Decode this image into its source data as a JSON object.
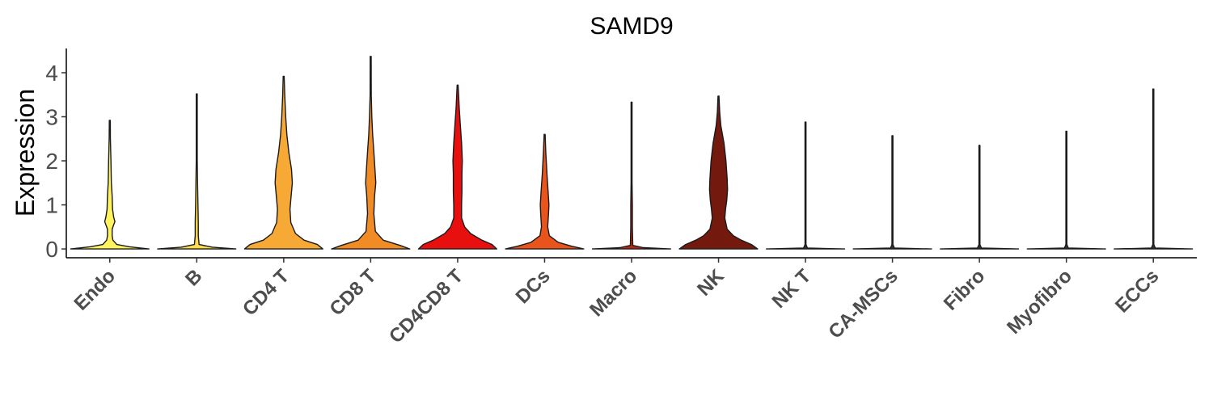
{
  "chart_data": {
    "type": "violin",
    "title": "SAMD9",
    "ylabel": "Expression",
    "xlabel": "",
    "ylim": [
      -0.2,
      4.55
    ],
    "yticks": [
      0,
      1,
      2,
      3,
      4
    ],
    "grid": false,
    "legend": "none",
    "categories": [
      "Endo",
      "B",
      "CD4 T",
      "CD8 T",
      "CD4CD8 T",
      "DCs",
      "Macro",
      "NK",
      "NK T",
      "CA-MSCs",
      "Fibro",
      "Myofibro",
      "ECCs"
    ],
    "series": [
      {
        "color": "#FFF45E",
        "max": 2.92,
        "density": [
          [
            0,
            1.0
          ],
          [
            0.05,
            0.5
          ],
          [
            0.1,
            0.18
          ],
          [
            0.2,
            0.08
          ],
          [
            0.3,
            0.06
          ],
          [
            0.45,
            0.06
          ],
          [
            0.55,
            0.1
          ],
          [
            0.62,
            0.13
          ],
          [
            0.72,
            0.1
          ],
          [
            0.9,
            0.07
          ],
          [
            1.2,
            0.06
          ],
          [
            1.5,
            0.04
          ],
          [
            2.0,
            0.03
          ],
          [
            2.5,
            0.015
          ],
          [
            2.92,
            0.005
          ]
        ]
      },
      {
        "color": "#FDDB4A",
        "max": 3.52,
        "density": [
          [
            0,
            1.0
          ],
          [
            0.04,
            0.4
          ],
          [
            0.1,
            0.06
          ],
          [
            0.3,
            0.04
          ],
          [
            0.6,
            0.04
          ],
          [
            1.0,
            0.03
          ],
          [
            1.5,
            0.02
          ],
          [
            2.0,
            0.01
          ],
          [
            3.52,
            0.005
          ]
        ]
      },
      {
        "color": "#F7A935",
        "max": 3.92,
        "density": [
          [
            0,
            1.0
          ],
          [
            0.1,
            0.86
          ],
          [
            0.2,
            0.52
          ],
          [
            0.35,
            0.3
          ],
          [
            0.6,
            0.18
          ],
          [
            0.9,
            0.16
          ],
          [
            1.2,
            0.19
          ],
          [
            1.5,
            0.22
          ],
          [
            1.8,
            0.2
          ],
          [
            2.2,
            0.13
          ],
          [
            2.6,
            0.08
          ],
          [
            3.0,
            0.05
          ],
          [
            3.5,
            0.025
          ],
          [
            3.92,
            0.008
          ]
        ]
      },
      {
        "color": "#F08B25",
        "max": 4.37,
        "density": [
          [
            0,
            1.0
          ],
          [
            0.08,
            0.75
          ],
          [
            0.2,
            0.32
          ],
          [
            0.4,
            0.12
          ],
          [
            0.8,
            0.08
          ],
          [
            1.2,
            0.1
          ],
          [
            1.5,
            0.13
          ],
          [
            1.8,
            0.11
          ],
          [
            2.2,
            0.08
          ],
          [
            2.6,
            0.05
          ],
          [
            3.0,
            0.03
          ],
          [
            3.5,
            0.015
          ],
          [
            4.37,
            0.005
          ]
        ]
      },
      {
        "color": "#E8100E",
        "max": 3.72,
        "density": [
          [
            0,
            1.0
          ],
          [
            0.1,
            0.88
          ],
          [
            0.2,
            0.62
          ],
          [
            0.35,
            0.33
          ],
          [
            0.5,
            0.18
          ],
          [
            0.7,
            0.1
          ],
          [
            1.0,
            0.1
          ],
          [
            1.3,
            0.11
          ],
          [
            1.7,
            0.11
          ],
          [
            2.0,
            0.12
          ],
          [
            2.4,
            0.1
          ],
          [
            2.8,
            0.07
          ],
          [
            3.2,
            0.04
          ],
          [
            3.72,
            0.008
          ]
        ]
      },
      {
        "color": "#E8541C",
        "max": 2.6,
        "density": [
          [
            0,
            1.0
          ],
          [
            0.06,
            0.7
          ],
          [
            0.15,
            0.35
          ],
          [
            0.3,
            0.12
          ],
          [
            0.5,
            0.08
          ],
          [
            0.8,
            0.1
          ],
          [
            1.0,
            0.11
          ],
          [
            1.3,
            0.09
          ],
          [
            1.7,
            0.06
          ],
          [
            2.2,
            0.03
          ],
          [
            2.6,
            0.006
          ]
        ]
      },
      {
        "color": "#B42A14",
        "max": 3.33,
        "density": [
          [
            0,
            1.0
          ],
          [
            0.03,
            0.3
          ],
          [
            0.08,
            0.03
          ],
          [
            0.5,
            0.02
          ],
          [
            1.0,
            0.02
          ],
          [
            1.5,
            0.01
          ],
          [
            3.33,
            0.004
          ]
        ]
      },
      {
        "color": "#73190E",
        "max": 3.47,
        "density": [
          [
            0,
            1.0
          ],
          [
            0.1,
            0.84
          ],
          [
            0.2,
            0.58
          ],
          [
            0.3,
            0.38
          ],
          [
            0.45,
            0.22
          ],
          [
            0.7,
            0.16
          ],
          [
            0.9,
            0.18
          ],
          [
            1.1,
            0.21
          ],
          [
            1.35,
            0.23
          ],
          [
            1.6,
            0.22
          ],
          [
            2.0,
            0.19
          ],
          [
            2.4,
            0.14
          ],
          [
            2.8,
            0.06
          ],
          [
            3.1,
            0.03
          ],
          [
            3.47,
            0.008
          ]
        ]
      },
      {
        "color": "#333333",
        "max": 2.88,
        "density": [
          [
            0,
            1.0
          ],
          [
            0.02,
            0.05
          ],
          [
            0.1,
            0.006
          ],
          [
            1.5,
            0.008
          ],
          [
            1.7,
            0.01
          ],
          [
            1.9,
            0.006
          ],
          [
            2.88,
            0.004
          ]
        ]
      },
      {
        "color": "#333333",
        "max": 2.57,
        "density": [
          [
            0,
            1.0
          ],
          [
            0.02,
            0.05
          ],
          [
            0.1,
            0.005
          ],
          [
            2.57,
            0.004
          ]
        ]
      },
      {
        "color": "#333333",
        "max": 2.35,
        "density": [
          [
            0,
            1.0
          ],
          [
            0.02,
            0.05
          ],
          [
            0.1,
            0.005
          ],
          [
            2.35,
            0.004
          ]
        ]
      },
      {
        "color": "#333333",
        "max": 2.67,
        "density": [
          [
            0,
            1.0
          ],
          [
            0.02,
            0.05
          ],
          [
            0.1,
            0.005
          ],
          [
            2.67,
            0.004
          ]
        ]
      },
      {
        "color": "#333333",
        "max": 3.63,
        "density": [
          [
            0,
            1.0
          ],
          [
            0.02,
            0.05
          ],
          [
            0.1,
            0.005
          ],
          [
            3.63,
            0.004
          ]
        ]
      }
    ]
  }
}
